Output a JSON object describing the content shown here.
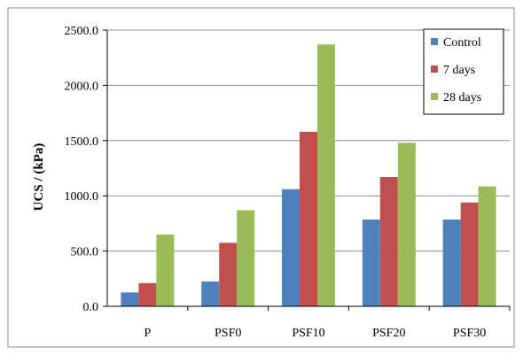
{
  "chart_data": {
    "type": "bar",
    "title": "",
    "xlabel": "",
    "ylabel": "UCS / (kPa)",
    "ylim": [
      0,
      2500
    ],
    "yticks": [
      "0.0",
      "500.0",
      "1000.0",
      "1500.0",
      "2000.0",
      "2500.0"
    ],
    "categories": [
      "P",
      "PSF0",
      "PSF10",
      "PSF20",
      "PSF30"
    ],
    "series": [
      {
        "name": "Control",
        "color": "#4F81BD",
        "values": [
          125,
          225,
          1060,
          785,
          785
        ]
      },
      {
        "name": "7 days",
        "color": "#C0504D",
        "values": [
          210,
          575,
          1580,
          1170,
          940
        ]
      },
      {
        "name": "28 days",
        "color": "#9BBB59",
        "values": [
          650,
          870,
          2370,
          1480,
          1085
        ]
      }
    ],
    "grid": true,
    "legend_position": "top-right"
  }
}
